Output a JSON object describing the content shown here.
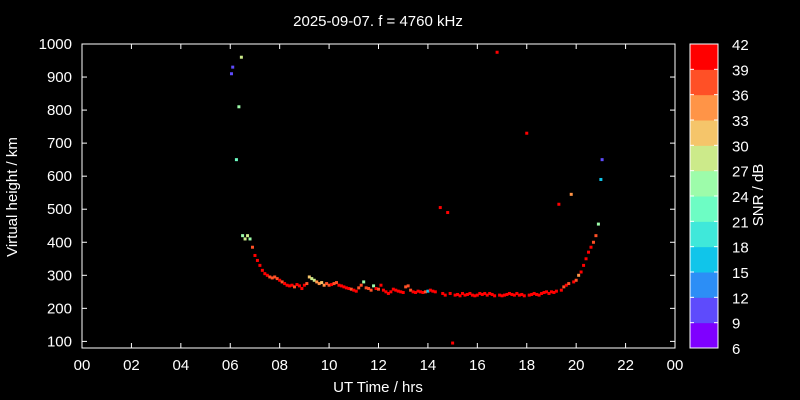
{
  "chart_data": {
    "type": "scatter",
    "title": "2025-09-07. f = 4760 kHz",
    "xlabel": "UT Time / hrs",
    "ylabel": "Virtual height / km",
    "xlim": [
      0,
      24
    ],
    "ylim": [
      80,
      1000
    ],
    "xticks": [
      "00",
      "02",
      "04",
      "06",
      "08",
      "10",
      "12",
      "14",
      "16",
      "18",
      "20",
      "22",
      "00"
    ],
    "yticks": [
      100,
      200,
      300,
      400,
      500,
      600,
      700,
      800,
      900,
      1000
    ],
    "colorbar": {
      "label": "SNR / dB",
      "min": 6,
      "max": 42,
      "ticks": [
        42,
        39,
        36,
        33,
        30,
        27,
        24,
        21,
        18,
        15,
        12,
        9,
        6
      ],
      "colors": [
        "#7f00ff",
        "#5e4bfc",
        "#2c8ef6",
        "#10c5ea",
        "#3fe8da",
        "#6dfdc4",
        "#9dfcaa",
        "#ccea8a",
        "#f5c56a",
        "#ff9447",
        "#ff5026",
        "#ff0000"
      ]
    },
    "points": [
      [
        6.05,
        910,
        9
      ],
      [
        6.1,
        930,
        9
      ],
      [
        6.25,
        650,
        22
      ],
      [
        6.35,
        810,
        25
      ],
      [
        6.45,
        960,
        29
      ],
      [
        6.5,
        420,
        26
      ],
      [
        6.6,
        410,
        27
      ],
      [
        6.7,
        420,
        27
      ],
      [
        6.8,
        410,
        25
      ],
      [
        6.9,
        385,
        38
      ],
      [
        7.0,
        360,
        39
      ],
      [
        7.1,
        345,
        40
      ],
      [
        7.2,
        330,
        40
      ],
      [
        7.3,
        315,
        40
      ],
      [
        7.4,
        305,
        40
      ],
      [
        7.5,
        300,
        39
      ],
      [
        7.6,
        295,
        38
      ],
      [
        7.7,
        292,
        36
      ],
      [
        7.8,
        295,
        37
      ],
      [
        7.9,
        290,
        37
      ],
      [
        8.0,
        285,
        39
      ],
      [
        8.1,
        280,
        38
      ],
      [
        8.2,
        275,
        40
      ],
      [
        8.3,
        270,
        40
      ],
      [
        8.4,
        268,
        40
      ],
      [
        8.5,
        270,
        39
      ],
      [
        8.6,
        265,
        38
      ],
      [
        8.7,
        272,
        40
      ],
      [
        8.8,
        268,
        40
      ],
      [
        8.9,
        260,
        39
      ],
      [
        9.0,
        270,
        39
      ],
      [
        9.1,
        275,
        38
      ],
      [
        9.2,
        295,
        30
      ],
      [
        9.3,
        290,
        28
      ],
      [
        9.4,
        285,
        29
      ],
      [
        9.5,
        280,
        33
      ],
      [
        9.6,
        275,
        35
      ],
      [
        9.7,
        278,
        31
      ],
      [
        9.8,
        270,
        33
      ],
      [
        9.9,
        275,
        37
      ],
      [
        10.0,
        270,
        38
      ],
      [
        10.1,
        272,
        40
      ],
      [
        10.2,
        275,
        38
      ],
      [
        10.3,
        278,
        37
      ],
      [
        10.4,
        270,
        39
      ],
      [
        10.5,
        268,
        40
      ],
      [
        10.6,
        265,
        40
      ],
      [
        10.7,
        262,
        39
      ],
      [
        10.8,
        260,
        40
      ],
      [
        10.9,
        258,
        38
      ],
      [
        11.0,
        255,
        40
      ],
      [
        11.1,
        252,
        40
      ],
      [
        11.2,
        262,
        38
      ],
      [
        11.3,
        270,
        36
      ],
      [
        11.4,
        280,
        24
      ],
      [
        11.5,
        262,
        37
      ],
      [
        11.6,
        260,
        38
      ],
      [
        11.7,
        255,
        37
      ],
      [
        11.8,
        268,
        25
      ],
      [
        11.9,
        260,
        40
      ],
      [
        12.0,
        258,
        38
      ],
      [
        12.1,
        270,
        39
      ],
      [
        12.2,
        255,
        40
      ],
      [
        12.3,
        250,
        40
      ],
      [
        12.4,
        245,
        39
      ],
      [
        12.5,
        250,
        40
      ],
      [
        12.6,
        258,
        40
      ],
      [
        12.7,
        255,
        40
      ],
      [
        12.8,
        252,
        39
      ],
      [
        12.9,
        250,
        40
      ],
      [
        13.0,
        248,
        40
      ],
      [
        13.1,
        265,
        38
      ],
      [
        13.2,
        268,
        37
      ],
      [
        13.3,
        255,
        38
      ],
      [
        13.4,
        250,
        40
      ],
      [
        13.5,
        248,
        40
      ],
      [
        13.6,
        252,
        39
      ],
      [
        13.7,
        250,
        40
      ],
      [
        13.8,
        248,
        40
      ],
      [
        13.9,
        250,
        36
      ],
      [
        14.0,
        252,
        17
      ],
      [
        14.1,
        255,
        40
      ],
      [
        14.2,
        252,
        39
      ],
      [
        14.3,
        250,
        40
      ],
      [
        14.5,
        505,
        41
      ],
      [
        14.6,
        245,
        40
      ],
      [
        14.7,
        240,
        40
      ],
      [
        14.8,
        490,
        41
      ],
      [
        14.9,
        245,
        40
      ],
      [
        15.0,
        95,
        41
      ],
      [
        15.1,
        240,
        40
      ],
      [
        15.2,
        242,
        40
      ],
      [
        15.3,
        238,
        41
      ],
      [
        15.4,
        245,
        40
      ],
      [
        15.5,
        240,
        40
      ],
      [
        15.6,
        242,
        41
      ],
      [
        15.7,
        245,
        40
      ],
      [
        15.8,
        240,
        40
      ],
      [
        15.9,
        238,
        41
      ],
      [
        16.0,
        240,
        40
      ],
      [
        16.1,
        245,
        40
      ],
      [
        16.2,
        242,
        40
      ],
      [
        16.3,
        245,
        41
      ],
      [
        16.4,
        240,
        40
      ],
      [
        16.5,
        245,
        41
      ],
      [
        16.6,
        242,
        40
      ],
      [
        16.7,
        238,
        41
      ],
      [
        16.8,
        975,
        42
      ],
      [
        16.9,
        240,
        40
      ],
      [
        17.0,
        238,
        41
      ],
      [
        17.1,
        240,
        40
      ],
      [
        17.2,
        242,
        41
      ],
      [
        17.3,
        245,
        40
      ],
      [
        17.4,
        242,
        40
      ],
      [
        17.5,
        240,
        41
      ],
      [
        17.6,
        245,
        40
      ],
      [
        17.7,
        240,
        41
      ],
      [
        17.8,
        242,
        40
      ],
      [
        17.9,
        238,
        41
      ],
      [
        18.0,
        730,
        42
      ],
      [
        18.1,
        240,
        40
      ],
      [
        18.2,
        242,
        41
      ],
      [
        18.3,
        245,
        40
      ],
      [
        18.4,
        242,
        40
      ],
      [
        18.5,
        240,
        41
      ],
      [
        18.6,
        245,
        40
      ],
      [
        18.7,
        248,
        40
      ],
      [
        18.8,
        250,
        40
      ],
      [
        18.9,
        245,
        41
      ],
      [
        19.0,
        250,
        40
      ],
      [
        19.1,
        248,
        40
      ],
      [
        19.2,
        252,
        40
      ],
      [
        19.3,
        515,
        42
      ],
      [
        19.4,
        255,
        39
      ],
      [
        19.5,
        265,
        38
      ],
      [
        19.6,
        270,
        39
      ],
      [
        19.7,
        275,
        38
      ],
      [
        19.8,
        545,
        33
      ],
      [
        19.9,
        280,
        40
      ],
      [
        20.0,
        285,
        37
      ],
      [
        20.1,
        300,
        35
      ],
      [
        20.2,
        310,
        39
      ],
      [
        20.3,
        330,
        40
      ],
      [
        20.4,
        350,
        40
      ],
      [
        20.5,
        370,
        40
      ],
      [
        20.6,
        385,
        40
      ],
      [
        20.7,
        400,
        38
      ],
      [
        20.8,
        420,
        36
      ],
      [
        20.9,
        455,
        26
      ],
      [
        21.0,
        590,
        16
      ],
      [
        21.05,
        650,
        11
      ]
    ]
  }
}
